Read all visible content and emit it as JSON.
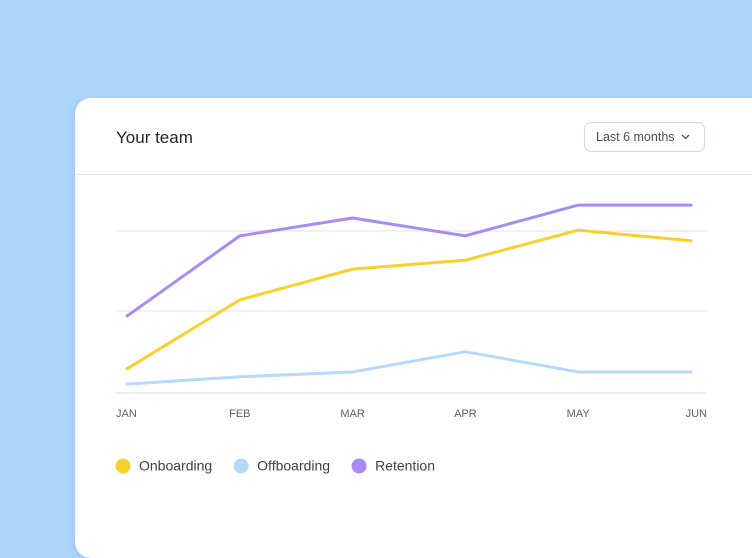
{
  "header": {
    "title": "Your team",
    "dropdown": "Last 6 months"
  },
  "chart_data": {
    "type": "line",
    "categories": [
      "JAN",
      "FEB",
      "MAR",
      "APR",
      "MAY",
      "JUN"
    ],
    "ylim": [
      0,
      2.5
    ],
    "series": [
      {
        "name": "Onboarding",
        "color": "#fad02c",
        "values": [
          0.3,
          1.15,
          1.53,
          1.64,
          2.01,
          1.88
        ]
      },
      {
        "name": "Offboarding",
        "color": "#b6dafb",
        "values": [
          0.11,
          0.2,
          0.26,
          0.51,
          0.26,
          0.26
        ]
      },
      {
        "name": "Retention",
        "color": "#a98cf2",
        "values": [
          0.95,
          1.94,
          2.16,
          1.94,
          2.32,
          2.32
        ]
      }
    ]
  }
}
